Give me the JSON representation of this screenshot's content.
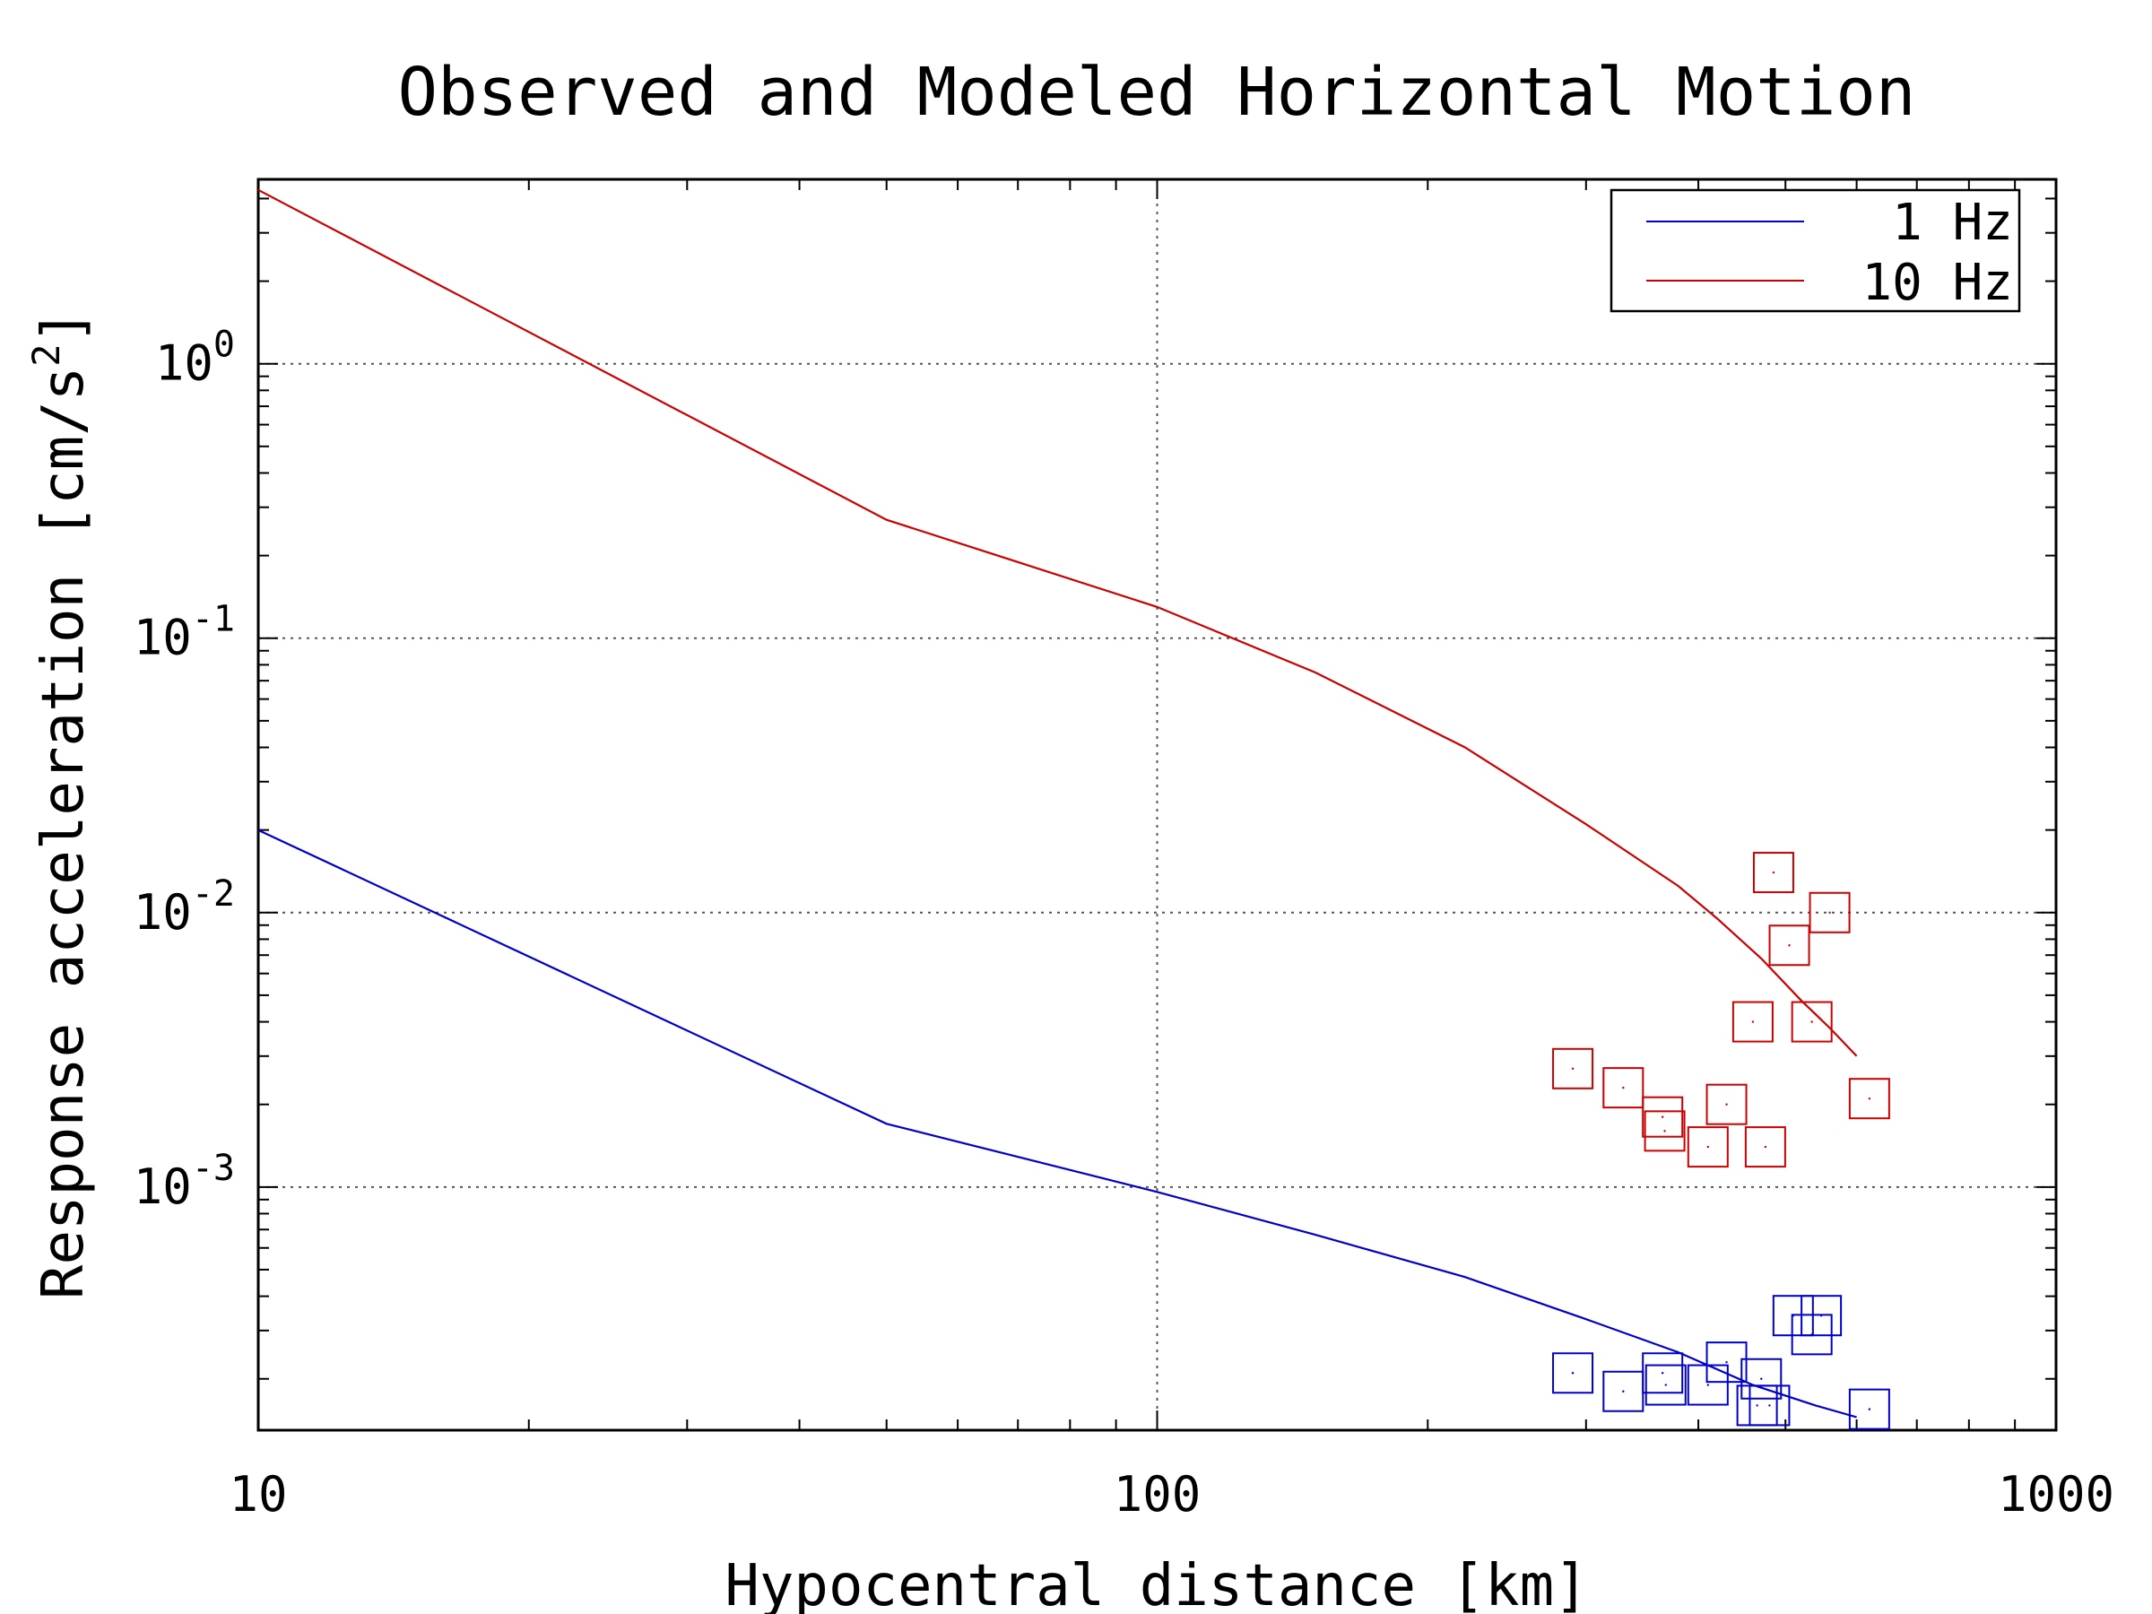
{
  "chart_data": {
    "type": "scatter",
    "title": "Observed and Modeled Horizontal Motion",
    "xlabel": "Hypocentral distance [km]",
    "ylabel_main": "Response acceleration [cm/s",
    "ylabel_sup": "2",
    "ylabel_end": "]",
    "x_scale": "log",
    "y_scale": "log",
    "xlim": [
      10,
      1000
    ],
    "ylim": [
      0.00013,
      4.7
    ],
    "grid": true,
    "legend_position": "top-right",
    "x_ticks": [
      {
        "value": 10,
        "label": "10"
      },
      {
        "value": 100,
        "label": "100"
      },
      {
        "value": 1000,
        "label": "1000"
      }
    ],
    "y_ticks": [
      {
        "value": 1,
        "base": "10",
        "exp": "0"
      },
      {
        "value": 0.1,
        "base": "10",
        "exp": "-1"
      },
      {
        "value": 0.01,
        "base": "10",
        "exp": "-2"
      },
      {
        "value": 0.001,
        "base": "10",
        "exp": "-3"
      }
    ],
    "series": [
      {
        "name": "1 Hz",
        "color": "#0000cc",
        "line": {
          "x": [
            10,
            50,
            100,
            150,
            220,
            300,
            380,
            460,
            540,
            600
          ],
          "y": [
            0.02,
            0.0017,
            0.00096,
            0.00067,
            0.00047,
            0.00033,
            0.00025,
            0.00019,
            0.00016,
            0.000145
          ]
        },
        "observed": {
          "x": [
            290,
            330,
            365,
            368,
            410,
            430,
            465,
            470,
            480,
            510,
            535,
            548,
            620
          ],
          "y": [
            0.00021,
            0.00018,
            0.00021,
            0.00019,
            0.00019,
            0.00023,
            0.00016,
            0.0002,
            0.00016,
            0.00034,
            0.00029,
            0.00034,
            0.000155
          ]
        }
      },
      {
        "name": "10 Hz",
        "color": "#cc0000",
        "line": {
          "x": [
            10,
            50,
            100,
            150,
            220,
            300,
            380,
            420,
            470,
            520,
            560,
            600
          ],
          "y": [
            4.3,
            0.27,
            0.13,
            0.075,
            0.04,
            0.021,
            0.0125,
            0.0095,
            0.0068,
            0.0048,
            0.0038,
            0.003
          ]
        },
        "observed": {
          "x": [
            290,
            330,
            365,
            367,
            410,
            430,
            460,
            475,
            485,
            505,
            535,
            560,
            620
          ],
          "y": [
            0.0027,
            0.0023,
            0.0018,
            0.0016,
            0.0014,
            0.002,
            0.004,
            0.0014,
            0.014,
            0.0076,
            0.004,
            0.01,
            0.0021
          ]
        }
      }
    ]
  }
}
